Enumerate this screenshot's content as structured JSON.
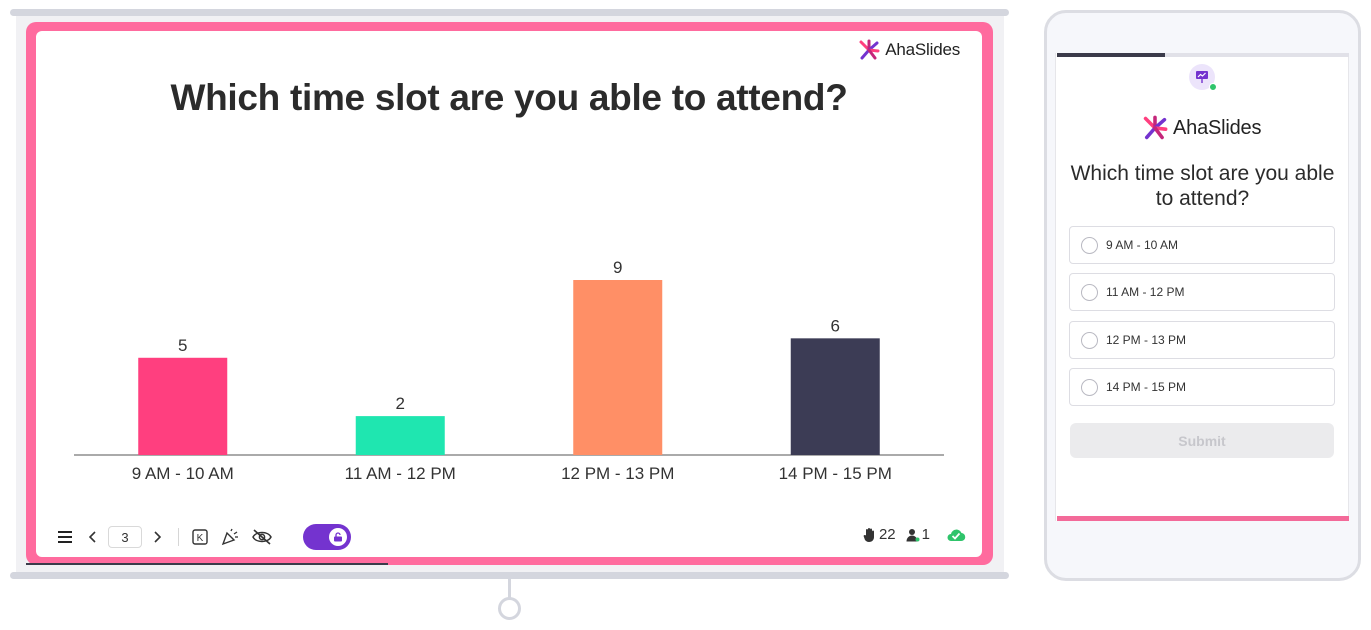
{
  "brand": {
    "name": "AhaSlides"
  },
  "slide": {
    "title": "Which time slot are you able to attend?",
    "page_number": "3"
  },
  "chart_data": {
    "type": "bar",
    "categories": [
      "9 AM - 10 AM",
      "11 AM - 12 PM",
      "12 PM - 13 PM",
      "14 PM - 15 PM"
    ],
    "values": [
      5,
      2,
      9,
      6
    ],
    "colors": [
      "#ff3f7f",
      "#1fe6b0",
      "#ff8f66",
      "#3c3c55"
    ],
    "title": "",
    "xlabel": "",
    "ylabel": "",
    "ylim": [
      0,
      9
    ],
    "grid": false,
    "data_labels": true
  },
  "toolbar": {
    "menu_icon": "menu-icon",
    "prev_icon": "chevron-left-icon",
    "next_icon": "chevron-right-icon",
    "keyboard_icon": "keyboard-k-icon",
    "celebrate_icon": "party-popper-icon",
    "hide_icon": "eye-off-icon",
    "toggle_state": "on",
    "accent": "#7433cf"
  },
  "stats": {
    "reactions": "22",
    "participants": "1",
    "status_icon": "cloud-check-icon",
    "status_color": "#2fc46b"
  },
  "phone": {
    "question": "Which time slot are you able to attend?",
    "options": [
      "9 AM - 10 AM",
      "11 AM - 12 PM",
      "12 PM - 13 PM",
      "14 PM - 15 PM"
    ],
    "submit_label": "Submit",
    "progress": 0.37
  }
}
